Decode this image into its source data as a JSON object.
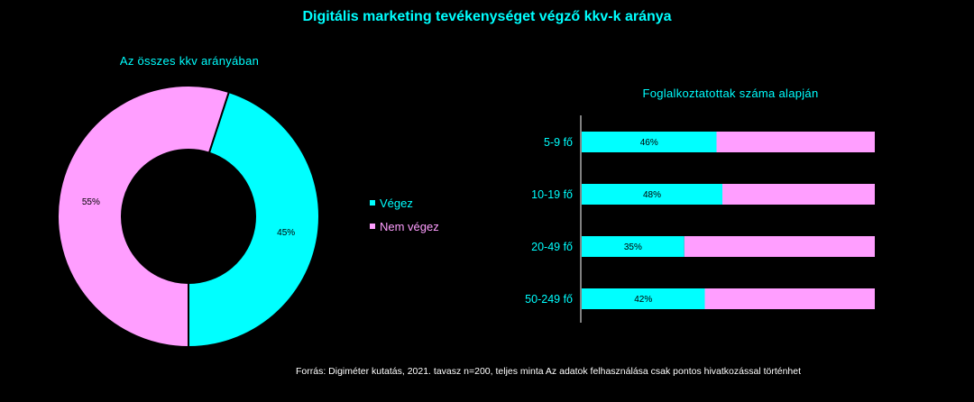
{
  "title": "Digitális marketing tevékenységet végző kkv-k aránya",
  "colors": {
    "vegez": "#00ffff",
    "nem_vegez": "#ff9eff",
    "accent": "#00ffff"
  },
  "legend": [
    {
      "label": "Végez",
      "color": "#00ffff"
    },
    {
      "label": "Nem végez",
      "color": "#ff9eff"
    }
  ],
  "chart_data": [
    {
      "type": "donut",
      "title": "Az összes kkv arányában",
      "labels": [
        "Végez",
        "Nem végez"
      ],
      "values": [
        45,
        55
      ],
      "data_labels": [
        "45%",
        "55%"
      ]
    },
    {
      "type": "bar",
      "orientation": "horizontal",
      "stacked": true,
      "percent": true,
      "title": "Foglalkoztatottak száma alapján",
      "categories": [
        "5-9 fő",
        "10-19 fő",
        "20-49 fő",
        "50-249 fő"
      ],
      "series": [
        {
          "name": "Végez",
          "values": [
            46,
            48,
            35,
            42
          ],
          "data_labels": [
            "46%",
            "48%",
            "35%",
            "42%"
          ]
        },
        {
          "name": "Nem végez",
          "values": [
            54,
            52,
            65,
            58
          ]
        }
      ],
      "xlim": [
        0,
        100
      ]
    }
  ],
  "source": "Forrás: Digiméter kutatás, 2021. tavasz n=200, teljes minta Az adatok felhasználása csak pontos hivatkozással történhet"
}
